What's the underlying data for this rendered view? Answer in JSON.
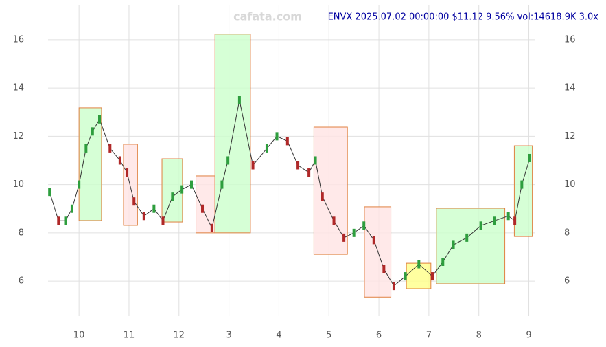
{
  "chart_data": {
    "type": "line",
    "title": "ENVX 2025.07.02 00:00:00 $11.12 9.56% vol:14618.9K 3.0x",
    "watermark": "cafata.com",
    "x": [
      -0.59,
      -0.41,
      -0.27,
      -0.14,
      0,
      0.14,
      0.27,
      0.41,
      0.62,
      0.82,
      0.96,
      1.1,
      1.3,
      1.5,
      1.68,
      1.87,
      2.06,
      2.25,
      2.47,
      2.66,
      2.86,
      2.98,
      3.21,
      3.48,
      3.76,
      3.96,
      4.17,
      4.38,
      4.6,
      4.73,
      4.87,
      5.1,
      5.3,
      5.5,
      5.7,
      5.9,
      6.1,
      6.3,
      6.53,
      6.8,
      7.07,
      7.28,
      7.49,
      7.76,
      8.04,
      8.31,
      8.59,
      8.72,
      8.86,
      9.02
    ],
    "values": [
      9.7,
      8.5,
      8.5,
      9.0,
      10.0,
      11.5,
      12.2,
      12.7,
      11.5,
      11.0,
      10.5,
      9.3,
      8.7,
      9.0,
      8.5,
      9.5,
      9.8,
      10.0,
      9.0,
      8.2,
      10.0,
      11.0,
      13.5,
      10.8,
      11.5,
      12.0,
      11.8,
      10.8,
      10.5,
      11.0,
      9.5,
      8.5,
      7.8,
      8.0,
      8.3,
      7.7,
      6.5,
      5.8,
      6.2,
      6.7,
      6.2,
      6.8,
      7.5,
      7.8,
      8.3,
      8.5,
      8.7,
      8.5,
      10.0,
      11.1
    ],
    "color": "#333333",
    "zones": [
      {
        "x": [
          0,
          0.45
        ],
        "y": [
          8.51,
          13.18
        ],
        "color": "#ccffcc"
      },
      {
        "x": [
          0.89,
          1.17
        ],
        "y": [
          8.31,
          11.67
        ],
        "color": "#ffe4e4"
      },
      {
        "x": [
          1.66,
          2.07
        ],
        "y": [
          8.45,
          11.07
        ],
        "color": "#ccffcc"
      },
      {
        "x": [
          2.34,
          2.72
        ],
        "y": [
          8.0,
          10.36
        ],
        "color": "#ffe4e4"
      },
      {
        "x": [
          2.72,
          3.43
        ],
        "y": [
          8.0,
          16.23
        ],
        "color": "#ccffcc"
      },
      {
        "x": [
          4.7,
          5.37
        ],
        "y": [
          7.11,
          12.38
        ],
        "color": "#ffe4e4"
      },
      {
        "x": [
          5.71,
          6.24
        ],
        "y": [
          5.34,
          9.08
        ],
        "color": "#ffe4e4"
      },
      {
        "x": [
          6.55,
          7.04
        ],
        "y": [
          5.69,
          6.74
        ],
        "color": "#ffff88"
      },
      {
        "x": [
          7.15,
          8.52
        ],
        "y": [
          5.89,
          9.02
        ],
        "color": "#ccffcc"
      },
      {
        "x": [
          8.71,
          9.07
        ],
        "y": [
          7.85,
          11.61
        ],
        "color": "#ccffcc"
      }
    ],
    "xlim": [
      -0.62,
      9.13
    ],
    "xticks": [
      {
        "value": 0,
        "label": "10"
      },
      {
        "value": 1,
        "label": "11"
      },
      {
        "value": 2,
        "label": "12"
      },
      3,
      4,
      5,
      6,
      7,
      8,
      9
    ],
    "ylim": [
      5.12,
      17.42
    ],
    "yticks": [
      6,
      8,
      10,
      12,
      14,
      16
    ],
    "grid": true
  }
}
